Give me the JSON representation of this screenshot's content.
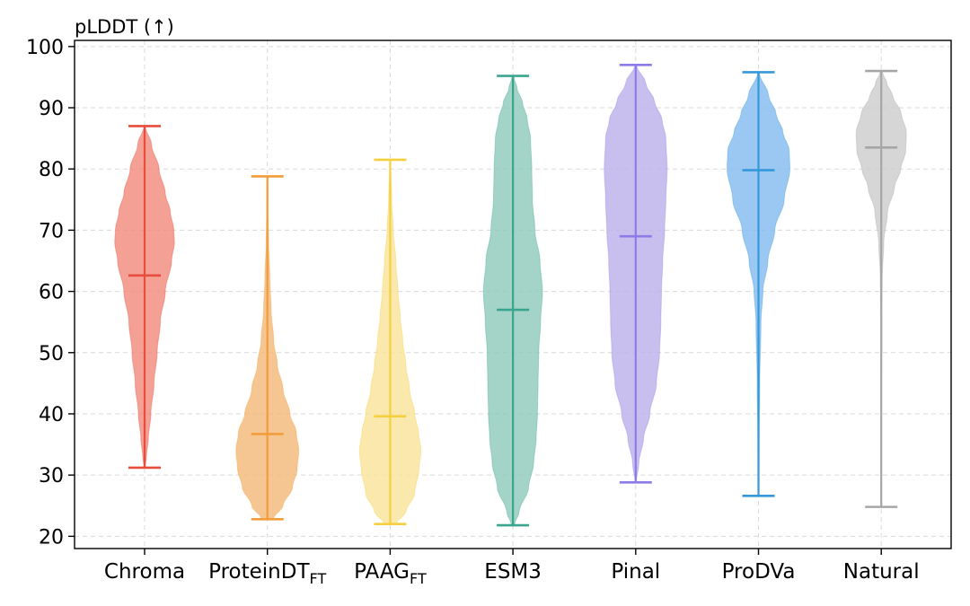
{
  "chart_data": {
    "type": "violin",
    "title": "pLDDT (↑)",
    "ylim": [
      18,
      101
    ],
    "yticks": [
      20,
      30,
      40,
      50,
      60,
      70,
      80,
      90,
      100
    ],
    "grid": true,
    "categories": [
      {
        "name": "Chroma",
        "sub": "",
        "color": "#e74c3c",
        "fill": "#f28b7d",
        "min": 31.2,
        "max": 87.0,
        "median": 62.6,
        "profile": [
          [
            31.2,
            0.02
          ],
          [
            33,
            0.06
          ],
          [
            36,
            0.12
          ],
          [
            40,
            0.2
          ],
          [
            45,
            0.3
          ],
          [
            50,
            0.4
          ],
          [
            55,
            0.5
          ],
          [
            60,
            0.66
          ],
          [
            65,
            0.86
          ],
          [
            68,
            0.95
          ],
          [
            70,
            0.93
          ],
          [
            73,
            0.82
          ],
          [
            76,
            0.66
          ],
          [
            80,
            0.46
          ],
          [
            84,
            0.22
          ],
          [
            87,
            0.02
          ]
        ]
      },
      {
        "name": "ProteinDT",
        "sub": "FT",
        "color": "#f39c3a",
        "fill": "#f4b97a",
        "min": 22.8,
        "max": 78.8,
        "median": 36.7,
        "profile": [
          [
            22.8,
            0.18
          ],
          [
            25,
            0.5
          ],
          [
            28,
            0.8
          ],
          [
            31,
            0.95
          ],
          [
            34,
            1.0
          ],
          [
            37,
            0.92
          ],
          [
            40,
            0.72
          ],
          [
            44,
            0.5
          ],
          [
            48,
            0.32
          ],
          [
            52,
            0.2
          ],
          [
            57,
            0.12
          ],
          [
            62,
            0.08
          ],
          [
            68,
            0.04
          ],
          [
            73,
            0.02
          ],
          [
            78.8,
            0.01
          ]
        ]
      },
      {
        "name": "PAAG",
        "sub": "FT",
        "color": "#f4d03f",
        "fill": "#f9e39b",
        "min": 22.0,
        "max": 81.5,
        "median": 39.6,
        "profile": [
          [
            22,
            0.18
          ],
          [
            24,
            0.5
          ],
          [
            27,
            0.78
          ],
          [
            31,
            0.92
          ],
          [
            34,
            0.98
          ],
          [
            37,
            0.9
          ],
          [
            40,
            0.78
          ],
          [
            44,
            0.62
          ],
          [
            48,
            0.5
          ],
          [
            52,
            0.4
          ],
          [
            56,
            0.32
          ],
          [
            60,
            0.25
          ],
          [
            65,
            0.18
          ],
          [
            70,
            0.1
          ],
          [
            75,
            0.05
          ],
          [
            81.5,
            0.01
          ]
        ]
      },
      {
        "name": "ESM3",
        "sub": "",
        "color": "#3aa58f",
        "fill": "#90cbbc",
        "min": 21.8,
        "max": 95.2,
        "median": 57.0,
        "profile": [
          [
            21.8,
            0.04
          ],
          [
            24,
            0.2
          ],
          [
            28,
            0.5
          ],
          [
            32,
            0.66
          ],
          [
            36,
            0.74
          ],
          [
            40,
            0.78
          ],
          [
            45,
            0.8
          ],
          [
            50,
            0.82
          ],
          [
            55,
            0.88
          ],
          [
            60,
            0.94
          ],
          [
            65,
            0.86
          ],
          [
            70,
            0.7
          ],
          [
            75,
            0.62
          ],
          [
            80,
            0.6
          ],
          [
            85,
            0.56
          ],
          [
            88,
            0.46
          ],
          [
            91,
            0.3
          ],
          [
            93,
            0.14
          ],
          [
            95.2,
            0.02
          ]
        ]
      },
      {
        "name": "Pinal",
        "sub": "",
        "color": "#8e7be8",
        "fill": "#bcb1ec",
        "min": 28.8,
        "max": 97.0,
        "median": 69.0,
        "profile": [
          [
            28.8,
            0.02
          ],
          [
            32,
            0.1
          ],
          [
            36,
            0.25
          ],
          [
            40,
            0.45
          ],
          [
            45,
            0.66
          ],
          [
            50,
            0.76
          ],
          [
            55,
            0.8
          ],
          [
            60,
            0.82
          ],
          [
            65,
            0.86
          ],
          [
            70,
            0.92
          ],
          [
            75,
            0.96
          ],
          [
            80,
            1.0
          ],
          [
            85,
            0.96
          ],
          [
            88,
            0.84
          ],
          [
            91,
            0.6
          ],
          [
            94,
            0.32
          ],
          [
            97,
            0.02
          ]
        ]
      },
      {
        "name": "ProDVa",
        "sub": "",
        "color": "#3498db",
        "fill": "#85bcef",
        "min": 26.6,
        "max": 95.8,
        "median": 79.8,
        "profile": [
          [
            26.6,
            0.01
          ],
          [
            35,
            0.02
          ],
          [
            45,
            0.04
          ],
          [
            55,
            0.08
          ],
          [
            60,
            0.14
          ],
          [
            65,
            0.3
          ],
          [
            70,
            0.52
          ],
          [
            75,
            0.82
          ],
          [
            80,
            1.0
          ],
          [
            83,
            0.98
          ],
          [
            86,
            0.78
          ],
          [
            89,
            0.56
          ],
          [
            92,
            0.32
          ],
          [
            95.8,
            0.02
          ]
        ]
      },
      {
        "name": "Natural",
        "sub": "",
        "color": "#a6a6a6",
        "fill": "#cdcdcd",
        "min": 24.8,
        "max": 96.0,
        "median": 83.5,
        "profile": [
          [
            24.8,
            0.01
          ],
          [
            40,
            0.01
          ],
          [
            55,
            0.02
          ],
          [
            62,
            0.03
          ],
          [
            68,
            0.08
          ],
          [
            73,
            0.2
          ],
          [
            77,
            0.42
          ],
          [
            80,
            0.62
          ],
          [
            83,
            0.78
          ],
          [
            86,
            0.8
          ],
          [
            89,
            0.64
          ],
          [
            92,
            0.36
          ],
          [
            94,
            0.18
          ],
          [
            96,
            0.02
          ]
        ]
      }
    ]
  }
}
